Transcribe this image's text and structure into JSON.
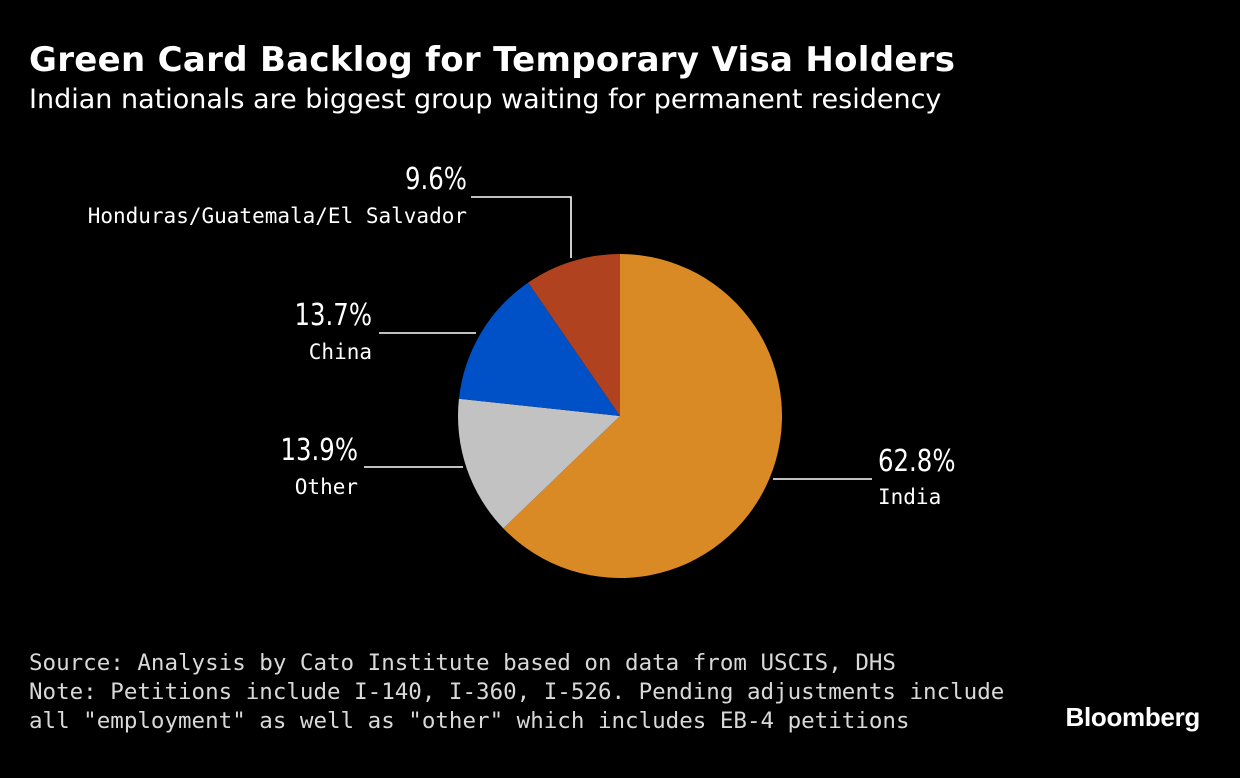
{
  "header": {
    "title": "Green Card Backlog for Temporary Visa Holders",
    "subtitle": "Indian nationals are biggest group waiting for permanent residency"
  },
  "chart_data": {
    "type": "pie",
    "start_angle_deg": 0,
    "direction": "clockwise",
    "slices": [
      {
        "name": "India",
        "value": 62.8,
        "label": "62.8%",
        "color": "#da8a24"
      },
      {
        "name": "Other",
        "value": 13.9,
        "label": "13.9%",
        "color": "#c2c2c2"
      },
      {
        "name": "China",
        "value": 13.7,
        "label": "13.7%",
        "color": "#0050c8"
      },
      {
        "name": "Honduras/Guatemala/El Salvador",
        "value": 9.6,
        "label": "9.6%",
        "color": "#b0421f"
      }
    ]
  },
  "footer": {
    "source": "Source: Analysis by Cato Institute based on data from USCIS, DHS",
    "note_line1": "Note: Petitions include I-140, I-360, I-526. Pending adjustments include",
    "note_line2": "all \"employment\" as well as \"other\" which includes EB-4 petitions"
  },
  "branding": {
    "logo": "Bloomberg"
  }
}
